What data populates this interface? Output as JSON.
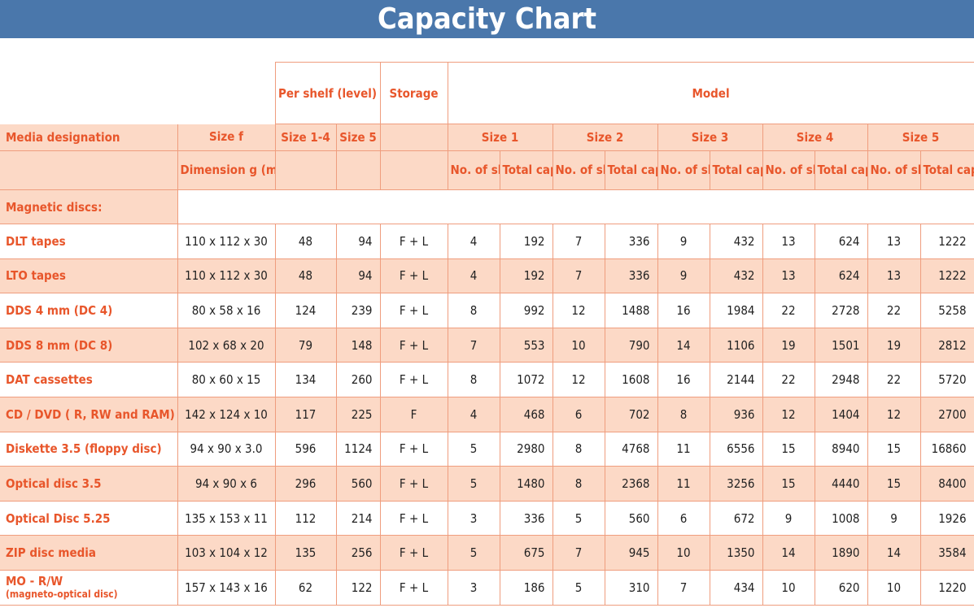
{
  "title": "Capacity Chart",
  "header": {
    "per_shelf": "Per shelf (level)",
    "storage": "Storage",
    "model": "Model",
    "media_designation": "Media designation",
    "size_f": "Size f",
    "size_1_4": "Size 1-4",
    "size_5": "Size 5",
    "model_sizes": [
      "Size 1",
      "Size 2",
      "Size 3",
      "Size 4",
      "Size 5"
    ],
    "dimension": "Dimension g (mm)",
    "no_of_shelves": "No. of shelves",
    "total_capacity": "Total capacity"
  },
  "section_label": "Magnetic discs:",
  "rows": [
    {
      "media": "DLT tapes",
      "sub": "",
      "dim": "110 x 112 x 30",
      "s14": "48",
      "s5": "94",
      "storage": "F + L",
      "m": [
        [
          "4",
          "192"
        ],
        [
          "7",
          "336"
        ],
        [
          "9",
          "432"
        ],
        [
          "13",
          "624"
        ],
        [
          "13",
          "1222"
        ]
      ]
    },
    {
      "media": "LTO tapes",
      "sub": "",
      "dim": "110 x 112 x 30",
      "s14": "48",
      "s5": "94",
      "storage": "F + L",
      "m": [
        [
          "4",
          "192"
        ],
        [
          "7",
          "336"
        ],
        [
          "9",
          "432"
        ],
        [
          "13",
          "624"
        ],
        [
          "13",
          "1222"
        ]
      ]
    },
    {
      "media": "DDS 4 mm (DC 4)",
      "sub": "",
      "dim": "80 x 58 x 16",
      "s14": "124",
      "s5": "239",
      "storage": "F + L",
      "m": [
        [
          "8",
          "992"
        ],
        [
          "12",
          "1488"
        ],
        [
          "16",
          "1984"
        ],
        [
          "22",
          "2728"
        ],
        [
          "22",
          "5258"
        ]
      ]
    },
    {
      "media": "DDS 8 mm (DC 8)",
      "sub": "",
      "dim": "102 x 68 x 20",
      "s14": "79",
      "s5": "148",
      "storage": "F + L",
      "m": [
        [
          "7",
          "553"
        ],
        [
          "10",
          "790"
        ],
        [
          "14",
          "1106"
        ],
        [
          "19",
          "1501"
        ],
        [
          "19",
          "2812"
        ]
      ]
    },
    {
      "media": "DAT cassettes",
      "sub": "",
      "dim": "80 x 60 x 15",
      "s14": "134",
      "s5": "260",
      "storage": "F + L",
      "m": [
        [
          "8",
          "1072"
        ],
        [
          "12",
          "1608"
        ],
        [
          "16",
          "2144"
        ],
        [
          "22",
          "2948"
        ],
        [
          "22",
          "5720"
        ]
      ]
    },
    {
      "media": "CD / DVD ( R, RW and RAM)",
      "sub": "",
      "dim": "142 x 124 x 10",
      "s14": "117",
      "s5": "225",
      "storage": "F",
      "m": [
        [
          "4",
          "468"
        ],
        [
          "6",
          "702"
        ],
        [
          "8",
          "936"
        ],
        [
          "12",
          "1404"
        ],
        [
          "12",
          "2700"
        ]
      ]
    },
    {
      "media": "Diskette 3.5 (floppy disc)",
      "sub": "",
      "dim": "94 x 90 x 3.0",
      "s14": "596",
      "s5": "1124",
      "storage": "F + L",
      "m": [
        [
          "5",
          "2980"
        ],
        [
          "8",
          "4768"
        ],
        [
          "11",
          "6556"
        ],
        [
          "15",
          "8940"
        ],
        [
          "15",
          "16860"
        ]
      ]
    },
    {
      "media": "Optical disc  3.5",
      "sub": "",
      "dim": "94 x 90 x 6",
      "s14": "296",
      "s5": "560",
      "storage": "F + L",
      "m": [
        [
          "5",
          "1480"
        ],
        [
          "8",
          "2368"
        ],
        [
          "11",
          "3256"
        ],
        [
          "15",
          "4440"
        ],
        [
          "15",
          "8400"
        ]
      ]
    },
    {
      "media": "Optical Disc  5.25",
      "sub": "",
      "dim": "135 x 153 x 11",
      "s14": "112",
      "s5": "214",
      "storage": "F + L",
      "m": [
        [
          "3",
          "336"
        ],
        [
          "5",
          "560"
        ],
        [
          "6",
          "672"
        ],
        [
          "9",
          "1008"
        ],
        [
          "9",
          "1926"
        ]
      ]
    },
    {
      "media": "ZIP disc media",
      "sub": "",
      "dim": "103 x 104 x 12",
      "s14": "135",
      "s5": "256",
      "storage": "F + L",
      "m": [
        [
          "5",
          "675"
        ],
        [
          "7",
          "945"
        ],
        [
          "10",
          "1350"
        ],
        [
          "14",
          "1890"
        ],
        [
          "14",
          "3584"
        ]
      ]
    },
    {
      "media": "MO - R/W",
      "sub": "(magneto-optical disc)",
      "dim": "157 x 143 x 16",
      "s14": "62",
      "s5": "122",
      "storage": "F + L",
      "m": [
        [
          "3",
          "186"
        ],
        [
          "5",
          "310"
        ],
        [
          "7",
          "434"
        ],
        [
          "10",
          "620"
        ],
        [
          "10",
          "1220"
        ]
      ]
    }
  ]
}
